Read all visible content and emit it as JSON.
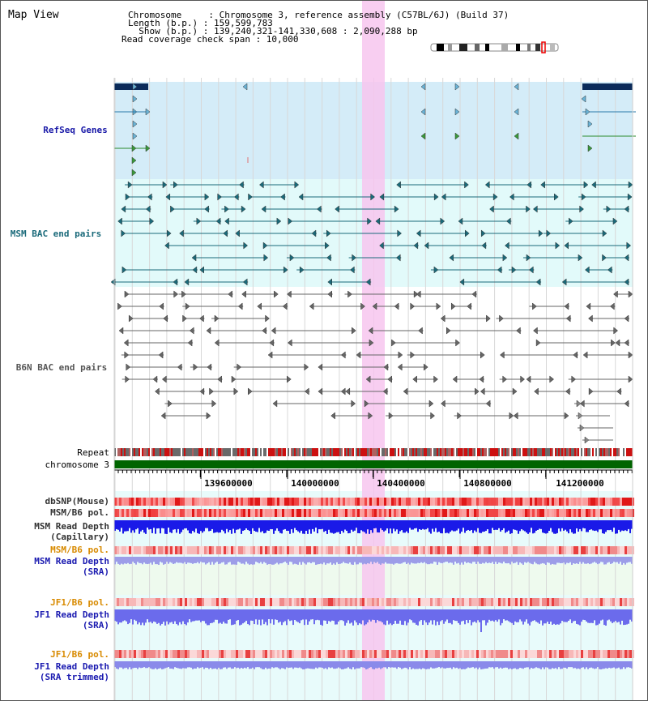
{
  "view_title": "Map View",
  "info": {
    "lines": [
      "Chromosome     : Chromosome 3, reference assembly (C57BL/6J) (Build 37)",
      "Length (b.p.) : 159,599,783",
      "  Show (b.p.) : 139,240,321-141,330,608 : 2,090,288 bp",
      "Read coverage check span : 10,000"
    ]
  },
  "tracks": {
    "refseq": "RefSeq Genes",
    "msm_bac": "MSM BAC end pairs",
    "b6n_bac": "B6N BAC end pairs",
    "repeat": "Repeat",
    "chromosome": "chromosome 3",
    "dbsnp": "dbSNP(Mouse)",
    "msm_b6_pol": "MSM/B6 pol.",
    "msm_depth_cap_1": "MSM Read Depth",
    "msm_depth_cap_2": "(Capillary)",
    "msm_b6_pol_sra": "MSM/B6 pol.",
    "msm_depth_sra_1": "MSM Read Depth",
    "msm_depth_sra_2": "(SRA)",
    "jf1_b6_pol_1": "JF1/B6 pol.",
    "jf1_depth_sra_1": "JF1 Read Depth",
    "jf1_depth_sra_2": "(SRA)",
    "jf1_b6_pol_2": "JF1/B6 pol.",
    "jf1_depth_trim_1": "JF1 Read Depth",
    "jf1_depth_trim_2": "(SRA trimmed)"
  },
  "axis": {
    "ticks": [
      "139600000",
      "140000000",
      "140400000",
      "140800000",
      "141200000"
    ]
  },
  "colors": {
    "refseq": "#1a1aa8",
    "msm_bac": "#1a6a7a",
    "b6n_bac": "#555555",
    "pol": "#d88a00",
    "highlight": "#f7c6ef",
    "gene_bg": "#d4ecf8",
    "bac_bg": "#e2fafa",
    "chromosome": "#006400"
  }
}
